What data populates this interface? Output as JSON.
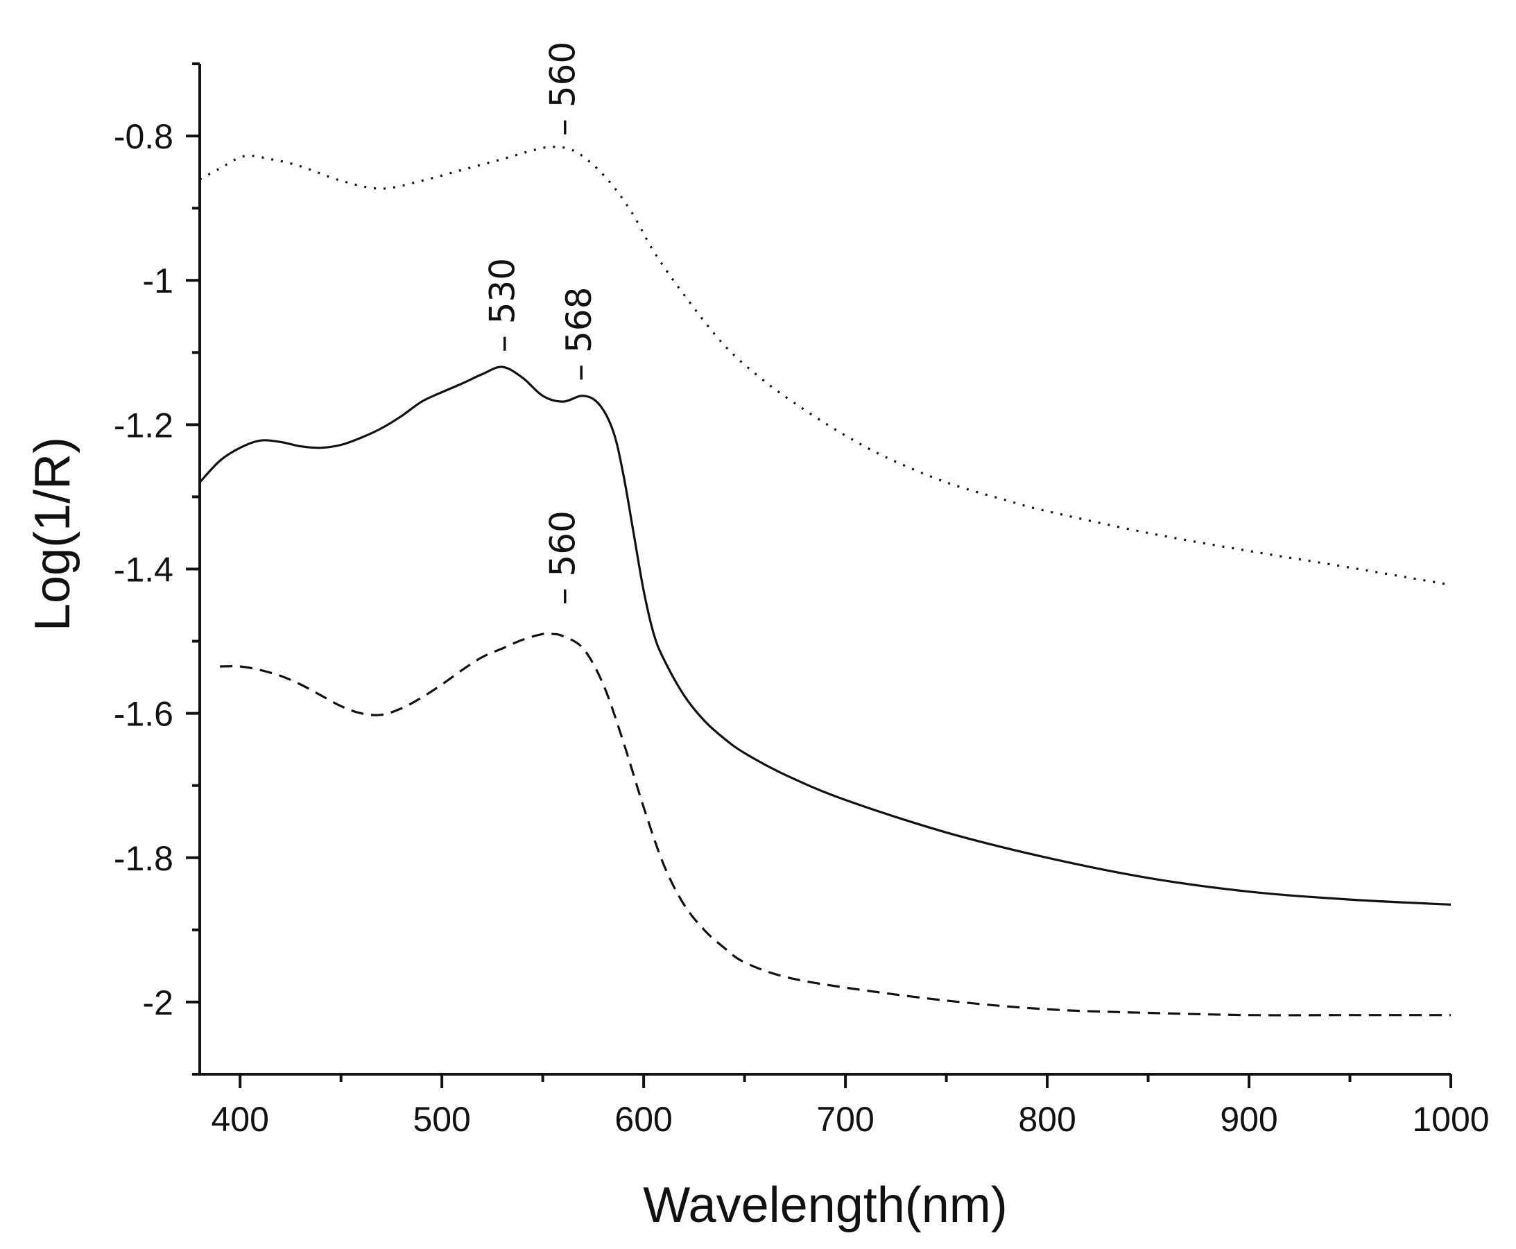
{
  "chart_data": {
    "type": "line",
    "title": "",
    "xlabel": "Wavelength(nm)",
    "ylabel": "Log(1/R)",
    "xlim": [
      380,
      1000
    ],
    "ylim": [
      -2.1,
      -0.7
    ],
    "x_ticks": [
      400,
      500,
      600,
      700,
      800,
      900,
      1000
    ],
    "x_tick_labels": [
      "400",
      "500",
      "600",
      "700",
      "800",
      "900",
      "1000"
    ],
    "y_ticks": [
      -0.8,
      -1.0,
      -1.2,
      -1.4,
      -1.6,
      -1.8,
      -2.0
    ],
    "y_tick_labels": [
      "-0.8",
      "-1",
      "-1.2",
      "-1.4",
      "-1.6",
      "-1.8",
      "-2"
    ],
    "grid": false,
    "legend": "none",
    "series": [
      {
        "name": "dotted",
        "style": "dotted",
        "x": [
          380,
          390,
          402,
          415,
          430,
          450,
          470,
          490,
          510,
          530,
          545,
          555,
          565,
          575,
          585,
          595,
          605,
          620,
          640,
          660,
          680,
          700,
          720,
          750,
          780,
          800,
          850,
          900,
          950,
          1000
        ],
        "y": [
          -0.86,
          -0.845,
          -0.828,
          -0.832,
          -0.842,
          -0.862,
          -0.873,
          -0.862,
          -0.847,
          -0.832,
          -0.82,
          -0.815,
          -0.82,
          -0.84,
          -0.87,
          -0.91,
          -0.96,
          -1.02,
          -1.09,
          -1.14,
          -1.18,
          -1.215,
          -1.245,
          -1.28,
          -1.305,
          -1.32,
          -1.35,
          -1.375,
          -1.398,
          -1.422
        ]
      },
      {
        "name": "solid",
        "style": "solid",
        "x": [
          380,
          390,
          400,
          410,
          420,
          430,
          440,
          450,
          460,
          470,
          480,
          490,
          500,
          510,
          520,
          530,
          540,
          550,
          560,
          570,
          578,
          585,
          590,
          595,
          600,
          605,
          610,
          620,
          630,
          640,
          650,
          670,
          700,
          750,
          800,
          850,
          900,
          950,
          1000
        ],
        "y": [
          -1.28,
          -1.25,
          -1.232,
          -1.222,
          -1.224,
          -1.23,
          -1.232,
          -1.228,
          -1.218,
          -1.205,
          -1.188,
          -1.168,
          -1.155,
          -1.143,
          -1.13,
          -1.12,
          -1.135,
          -1.16,
          -1.168,
          -1.16,
          -1.172,
          -1.21,
          -1.27,
          -1.35,
          -1.43,
          -1.49,
          -1.525,
          -1.575,
          -1.61,
          -1.635,
          -1.655,
          -1.685,
          -1.72,
          -1.765,
          -1.8,
          -1.828,
          -1.847,
          -1.858,
          -1.865
        ]
      },
      {
        "name": "dashed",
        "style": "dashed",
        "x": [
          390,
          400,
          410,
          420,
          430,
          440,
          450,
          460,
          470,
          480,
          490,
          500,
          510,
          520,
          530,
          540,
          550,
          555,
          560,
          570,
          580,
          590,
          600,
          610,
          620,
          630,
          640,
          650,
          670,
          700,
          750,
          800,
          850,
          900,
          950,
          1000
        ],
        "y": [
          -1.535,
          -1.535,
          -1.54,
          -1.548,
          -1.56,
          -1.575,
          -1.59,
          -1.6,
          -1.602,
          -1.593,
          -1.578,
          -1.56,
          -1.54,
          -1.522,
          -1.51,
          -1.498,
          -1.49,
          -1.49,
          -1.493,
          -1.51,
          -1.56,
          -1.64,
          -1.73,
          -1.81,
          -1.865,
          -1.9,
          -1.925,
          -1.945,
          -1.965,
          -1.98,
          -1.998,
          -2.01,
          -2.015,
          -2.018,
          -2.018,
          -2.018
        ]
      }
    ],
    "annotations": [
      {
        "text": "560",
        "x": 560,
        "y": -0.8
      },
      {
        "text": "530",
        "x": 530,
        "y": -1.1
      },
      {
        "text": "568",
        "x": 568,
        "y": -1.14
      },
      {
        "text": "560",
        "x": 560,
        "y": -1.45
      }
    ]
  }
}
